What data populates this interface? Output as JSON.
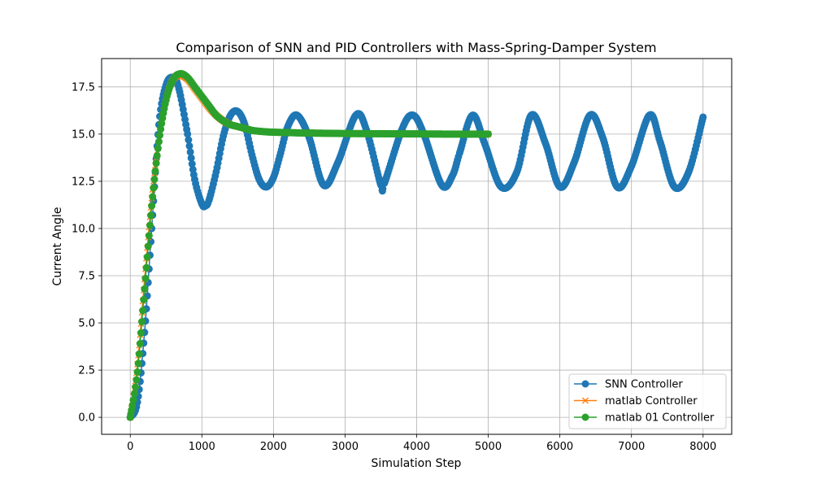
{
  "chart_data": {
    "type": "line",
    "title": "Comparison of SNN and PID Controllers with Mass-Spring-Damper System",
    "xlabel": "Simulation Step",
    "ylabel": "Current Angle",
    "xlim": [
      -400,
      8400
    ],
    "ylim": [
      -0.9,
      19.0
    ],
    "xticks": [
      0,
      1000,
      2000,
      3000,
      4000,
      5000,
      6000,
      7000,
      8000
    ],
    "yticks": [
      0.0,
      2.5,
      5.0,
      7.5,
      10.0,
      12.5,
      15.0,
      17.5
    ],
    "grid": true,
    "legend_position": "lower-right",
    "series": [
      {
        "name": "SNN Controller",
        "color": "#1f77b4",
        "marker": "circle",
        "x": [
          0,
          100,
          200,
          300,
          400,
          500,
          600,
          680,
          800,
          900,
          1000,
          1050,
          1100,
          1200,
          1300,
          1400,
          1500,
          1600,
          1700,
          1800,
          1900,
          2000,
          2100,
          2200,
          2330,
          2500,
          2700,
          2900,
          3150,
          3300,
          3500,
          3550,
          3800,
          3950,
          4100,
          4350,
          4500,
          4600,
          4780,
          4950,
          5180,
          5400,
          5600,
          5800,
          6000,
          6200,
          6420,
          6600,
          6800,
          7000,
          7250,
          7400,
          7600,
          7800,
          8000
        ],
        "y": [
          0.0,
          0.8,
          4.5,
          10.0,
          15.5,
          17.6,
          18.0,
          17.4,
          15.0,
          12.6,
          11.3,
          11.2,
          11.5,
          13.0,
          14.9,
          16.0,
          16.2,
          15.5,
          13.9,
          12.6,
          12.2,
          12.7,
          14.0,
          15.4,
          16.0,
          14.8,
          12.3,
          13.5,
          16.0,
          15.2,
          12.3,
          12.4,
          15.3,
          16.0,
          15.0,
          12.3,
          12.8,
          14.0,
          16.0,
          14.5,
          12.2,
          13.0,
          16.0,
          14.5,
          12.2,
          13.5,
          16.0,
          14.8,
          12.2,
          13.3,
          16.0,
          14.6,
          12.2,
          13.0,
          15.9
        ]
      },
      {
        "name": "matlab Controller",
        "color": "#ff7f0e",
        "marker": "x",
        "x": [
          0,
          100,
          200,
          300,
          400,
          500,
          600,
          700,
          800,
          900,
          1000,
          1100,
          1200,
          1300,
          1400,
          1500,
          1600,
          1700,
          1800,
          1900,
          2000,
          2200,
          2400,
          2600,
          2800,
          3000,
          3500,
          4000,
          4500,
          5000
        ],
        "y": [
          0.0,
          2.8,
          7.3,
          11.6,
          14.8,
          16.9,
          17.9,
          18.1,
          17.9,
          17.4,
          16.9,
          16.4,
          16.0,
          15.7,
          15.5,
          15.4,
          15.3,
          15.2,
          15.15,
          15.12,
          15.1,
          15.08,
          15.06,
          15.05,
          15.04,
          15.03,
          15.02,
          15.01,
          15.0,
          15.0
        ]
      },
      {
        "name": "matlab 01 Controller",
        "color": "#2ca02c",
        "marker": "circle",
        "x": [
          0,
          100,
          200,
          300,
          400,
          500,
          600,
          700,
          800,
          900,
          1000,
          1100,
          1200,
          1300,
          1400,
          1500,
          1600,
          1700,
          1800,
          1900,
          2000,
          2200,
          2400,
          2600,
          2800,
          3000,
          3500,
          4000,
          4500,
          5000
        ],
        "y": [
          0.0,
          2.4,
          6.8,
          11.2,
          14.6,
          16.8,
          17.9,
          18.2,
          18.0,
          17.5,
          17.0,
          16.5,
          16.0,
          15.7,
          15.5,
          15.4,
          15.3,
          15.2,
          15.15,
          15.12,
          15.1,
          15.08,
          15.06,
          15.05,
          15.04,
          15.03,
          15.02,
          15.01,
          15.0,
          15.0
        ]
      }
    ]
  }
}
